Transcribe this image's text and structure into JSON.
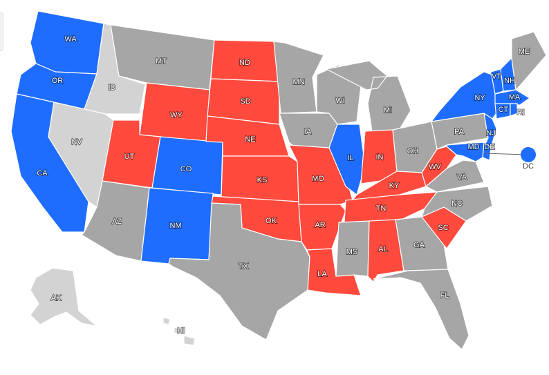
{
  "colors": {
    "dem": "#1f6dff",
    "rep": "#ff4a3d",
    "undecided": "#a6a6a6",
    "no_data": "#d3d3d3"
  },
  "states": {
    "WA": {
      "label": "WA",
      "status": "dem"
    },
    "OR": {
      "label": "OR",
      "status": "dem"
    },
    "CA": {
      "label": "CA",
      "status": "dem"
    },
    "ID": {
      "label": "ID",
      "status": "no_data"
    },
    "NV": {
      "label": "NV",
      "status": "no_data"
    },
    "MT": {
      "label": "MT",
      "status": "undecided"
    },
    "WY": {
      "label": "WY",
      "status": "rep"
    },
    "UT": {
      "label": "UT",
      "status": "rep"
    },
    "CO": {
      "label": "CO",
      "status": "dem"
    },
    "AZ": {
      "label": "AZ",
      "status": "undecided"
    },
    "NM": {
      "label": "NM",
      "status": "dem"
    },
    "ND": {
      "label": "ND",
      "status": "rep"
    },
    "SD": {
      "label": "SD",
      "status": "rep"
    },
    "NE": {
      "label": "NE",
      "status": "rep"
    },
    "KS": {
      "label": "KS",
      "status": "rep"
    },
    "OK": {
      "label": "OK",
      "status": "rep"
    },
    "TX": {
      "label": "TX",
      "status": "undecided"
    },
    "MN": {
      "label": "MN",
      "status": "undecided"
    },
    "IA": {
      "label": "IA",
      "status": "undecided"
    },
    "MO": {
      "label": "MO",
      "status": "rep"
    },
    "AR": {
      "label": "AR",
      "status": "rep"
    },
    "LA": {
      "label": "LA",
      "status": "rep"
    },
    "WI": {
      "label": "WI",
      "status": "undecided"
    },
    "IL": {
      "label": "IL",
      "status": "dem"
    },
    "MI": {
      "label": "MI",
      "status": "undecided"
    },
    "IN": {
      "label": "IN",
      "status": "rep"
    },
    "OH": {
      "label": "OH",
      "status": "undecided"
    },
    "KY": {
      "label": "KY",
      "status": "rep"
    },
    "TN": {
      "label": "TN",
      "status": "rep"
    },
    "MS": {
      "label": "MS",
      "status": "undecided"
    },
    "AL": {
      "label": "AL",
      "status": "rep"
    },
    "GA": {
      "label": "GA",
      "status": "undecided"
    },
    "FL": {
      "label": "FL",
      "status": "undecided"
    },
    "SC": {
      "label": "SC",
      "status": "rep"
    },
    "NC": {
      "label": "NC",
      "status": "undecided"
    },
    "VA": {
      "label": "VA",
      "status": "undecided"
    },
    "WV": {
      "label": "WV",
      "status": "rep"
    },
    "PA": {
      "label": "PA",
      "status": "undecided"
    },
    "NY": {
      "label": "NY",
      "status": "dem"
    },
    "VT": {
      "label": "VT",
      "status": "dem"
    },
    "NH": {
      "label": "NH",
      "status": "dem"
    },
    "ME": {
      "label": "ME",
      "status": "undecided"
    },
    "MA": {
      "label": "MA",
      "status": "dem"
    },
    "CT": {
      "label": "CT",
      "status": "dem"
    },
    "RI": {
      "label": "RI",
      "status": "dem"
    },
    "NJ": {
      "label": "NJ",
      "status": "dem"
    },
    "DE": {
      "label": "DE",
      "status": "dem"
    },
    "MD": {
      "label": "MD",
      "status": "dem"
    },
    "DC": {
      "label": "DC",
      "status": "dem"
    },
    "AK": {
      "label": "AK",
      "status": "no_data"
    },
    "HI": {
      "label": "HI",
      "status": "no_data"
    }
  }
}
